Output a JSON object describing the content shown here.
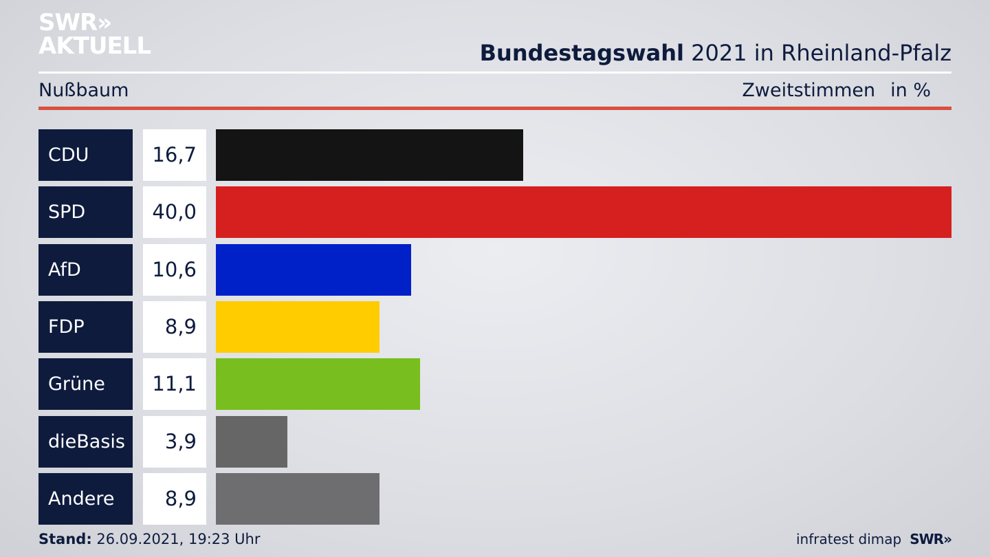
{
  "header": {
    "logo_line1": "SWR»",
    "logo_line2": "AKTUELL",
    "title_bold": "Bundestagswahl",
    "title_rest": " 2021 in Rheinland-Pfalz",
    "region": "Nußbaum",
    "metric": "Zweitstimmen",
    "unit": "in %"
  },
  "chart_data": {
    "type": "bar",
    "orientation": "horizontal",
    "categories": [
      "CDU",
      "SPD",
      "AfD",
      "FDP",
      "Grüne",
      "dieBasis",
      "Andere"
    ],
    "values": [
      16.7,
      40.0,
      10.6,
      8.9,
      11.1,
      3.9,
      8.9
    ],
    "value_labels": [
      "16,7",
      "40,0",
      "10,6",
      "8,9",
      "11,1",
      "3,9",
      "8,9"
    ],
    "colors": [
      "#141414",
      "#d62020",
      "#0020c8",
      "#ffcc00",
      "#78be1e",
      "#666666",
      "#6e6e70"
    ],
    "xlim": [
      0,
      40
    ],
    "grid": false,
    "legend": "none"
  },
  "footer": {
    "stand_label": "Stand:",
    "stand_value": " 26.09.2021, 19:23 Uhr",
    "source": "infratest dimap",
    "brand": "SWR»"
  }
}
